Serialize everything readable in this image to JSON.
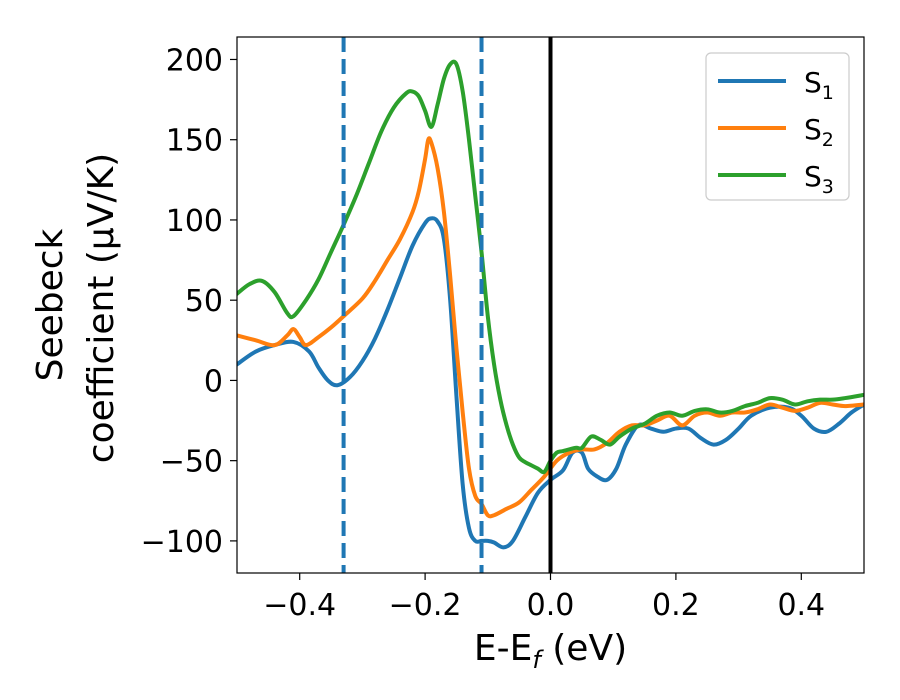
{
  "chart_data": {
    "type": "line",
    "xlabel": {
      "main": "E-E",
      "sub": "f",
      "unit": " (eV)"
    },
    "ylabel": {
      "line1": "Seebeck",
      "line2": "coefficient  (μV/K)"
    },
    "xlim": [
      -0.5,
      0.5
    ],
    "ylim": [
      -120,
      214
    ],
    "xticks": [
      -0.4,
      -0.2,
      0.0,
      0.2,
      0.4
    ],
    "xtick_labels": [
      "−0.4",
      "−0.2",
      "0.0",
      "0.2",
      "0.4"
    ],
    "yticks": [
      -100,
      -50,
      0,
      50,
      100,
      150,
      200
    ],
    "ytick_labels": [
      "−100",
      "−50",
      "0",
      "50",
      "100",
      "150",
      "200"
    ],
    "grid": false,
    "legend_position": "top-right",
    "vlines": [
      {
        "x": -0.33,
        "style": "dashed",
        "color": "#1f77b4"
      },
      {
        "x": -0.11,
        "style": "dashed",
        "color": "#1f77b4"
      },
      {
        "x": 0.0,
        "style": "solid",
        "color": "#000000"
      }
    ],
    "series": [
      {
        "name": "S",
        "name_sub": "1",
        "color": "#1f77b4",
        "points": [
          [
            -0.5,
            10
          ],
          [
            -0.47,
            18
          ],
          [
            -0.44,
            22
          ],
          [
            -0.41,
            24
          ],
          [
            -0.385,
            18
          ],
          [
            -0.37,
            8
          ],
          [
            -0.355,
            0
          ],
          [
            -0.34,
            -3
          ],
          [
            -0.32,
            2
          ],
          [
            -0.3,
            12
          ],
          [
            -0.28,
            26
          ],
          [
            -0.26,
            44
          ],
          [
            -0.24,
            64
          ],
          [
            -0.22,
            84
          ],
          [
            -0.2,
            98
          ],
          [
            -0.19,
            101
          ],
          [
            -0.18,
            99
          ],
          [
            -0.17,
            88
          ],
          [
            -0.16,
            50
          ],
          [
            -0.15,
            -10
          ],
          [
            -0.14,
            -65
          ],
          [
            -0.13,
            -92
          ],
          [
            -0.12,
            -100
          ],
          [
            -0.11,
            -100
          ],
          [
            -0.1,
            -100
          ],
          [
            -0.09,
            -101
          ],
          [
            -0.075,
            -104
          ],
          [
            -0.06,
            -100
          ],
          [
            -0.04,
            -85
          ],
          [
            -0.02,
            -70
          ],
          [
            0.0,
            -62
          ],
          [
            0.02,
            -56
          ],
          [
            0.035,
            -45
          ],
          [
            0.05,
            -45
          ],
          [
            0.06,
            -55
          ],
          [
            0.075,
            -60
          ],
          [
            0.09,
            -62
          ],
          [
            0.105,
            -55
          ],
          [
            0.12,
            -40
          ],
          [
            0.14,
            -28
          ],
          [
            0.16,
            -30
          ],
          [
            0.18,
            -32
          ],
          [
            0.2,
            -30
          ],
          [
            0.22,
            -30
          ],
          [
            0.24,
            -36
          ],
          [
            0.26,
            -40
          ],
          [
            0.28,
            -37
          ],
          [
            0.3,
            -30
          ],
          [
            0.32,
            -22
          ],
          [
            0.35,
            -17
          ],
          [
            0.38,
            -17
          ],
          [
            0.4,
            -22
          ],
          [
            0.42,
            -30
          ],
          [
            0.44,
            -32
          ],
          [
            0.46,
            -27
          ],
          [
            0.48,
            -20
          ],
          [
            0.5,
            -15
          ]
        ]
      },
      {
        "name": "S",
        "name_sub": "2",
        "color": "#ff7f0e",
        "points": [
          [
            -0.5,
            28
          ],
          [
            -0.47,
            25
          ],
          [
            -0.44,
            22
          ],
          [
            -0.42,
            28
          ],
          [
            -0.41,
            32
          ],
          [
            -0.4,
            27
          ],
          [
            -0.39,
            22
          ],
          [
            -0.37,
            27
          ],
          [
            -0.35,
            33
          ],
          [
            -0.33,
            40
          ],
          [
            -0.3,
            51
          ],
          [
            -0.28,
            62
          ],
          [
            -0.26,
            75
          ],
          [
            -0.24,
            88
          ],
          [
            -0.22,
            105
          ],
          [
            -0.21,
            118
          ],
          [
            -0.2,
            138
          ],
          [
            -0.195,
            150
          ],
          [
            -0.19,
            148
          ],
          [
            -0.18,
            132
          ],
          [
            -0.17,
            105
          ],
          [
            -0.16,
            65
          ],
          [
            -0.15,
            20
          ],
          [
            -0.14,
            -20
          ],
          [
            -0.13,
            -55
          ],
          [
            -0.12,
            -72
          ],
          [
            -0.11,
            -77
          ],
          [
            -0.1,
            -84
          ],
          [
            -0.09,
            -84
          ],
          [
            -0.07,
            -80
          ],
          [
            -0.05,
            -76
          ],
          [
            -0.03,
            -68
          ],
          [
            -0.01,
            -60
          ],
          [
            0.01,
            -50
          ],
          [
            0.03,
            -45
          ],
          [
            0.05,
            -43
          ],
          [
            0.07,
            -43
          ],
          [
            0.09,
            -39
          ],
          [
            0.11,
            -32
          ],
          [
            0.13,
            -28
          ],
          [
            0.15,
            -28
          ],
          [
            0.17,
            -25
          ],
          [
            0.19,
            -22
          ],
          [
            0.21,
            -28
          ],
          [
            0.23,
            -22
          ],
          [
            0.25,
            -20
          ],
          [
            0.27,
            -22
          ],
          [
            0.29,
            -20
          ],
          [
            0.31,
            -20
          ],
          [
            0.33,
            -18
          ],
          [
            0.35,
            -15
          ],
          [
            0.37,
            -17
          ],
          [
            0.39,
            -19
          ],
          [
            0.41,
            -17
          ],
          [
            0.43,
            -14
          ],
          [
            0.45,
            -15
          ],
          [
            0.47,
            -16
          ],
          [
            0.5,
            -15
          ]
        ]
      },
      {
        "name": "S",
        "name_sub": "3",
        "color": "#2ca02c",
        "points": [
          [
            -0.5,
            54
          ],
          [
            -0.48,
            60
          ],
          [
            -0.46,
            62
          ],
          [
            -0.44,
            55
          ],
          [
            -0.42,
            42
          ],
          [
            -0.41,
            40
          ],
          [
            -0.39,
            50
          ],
          [
            -0.37,
            63
          ],
          [
            -0.35,
            80
          ],
          [
            -0.33,
            97
          ],
          [
            -0.31,
            115
          ],
          [
            -0.29,
            135
          ],
          [
            -0.27,
            155
          ],
          [
            -0.25,
            170
          ],
          [
            -0.23,
            179
          ],
          [
            -0.22,
            180
          ],
          [
            -0.21,
            177
          ],
          [
            -0.2,
            168
          ],
          [
            -0.19,
            158
          ],
          [
            -0.18,
            172
          ],
          [
            -0.17,
            188
          ],
          [
            -0.16,
            197
          ],
          [
            -0.15,
            197
          ],
          [
            -0.14,
            180
          ],
          [
            -0.13,
            150
          ],
          [
            -0.12,
            115
          ],
          [
            -0.11,
            80
          ],
          [
            -0.1,
            40
          ],
          [
            -0.09,
            10
          ],
          [
            -0.08,
            -12
          ],
          [
            -0.07,
            -28
          ],
          [
            -0.06,
            -40
          ],
          [
            -0.05,
            -48
          ],
          [
            -0.04,
            -51
          ],
          [
            -0.03,
            -53
          ],
          [
            -0.02,
            -55
          ],
          [
            -0.01,
            -57
          ],
          [
            0.0,
            -50
          ],
          [
            0.01,
            -45
          ],
          [
            0.02,
            -44
          ],
          [
            0.04,
            -42
          ],
          [
            0.05,
            -42
          ],
          [
            0.065,
            -35
          ],
          [
            0.08,
            -37
          ],
          [
            0.095,
            -40
          ],
          [
            0.11,
            -35
          ],
          [
            0.13,
            -30
          ],
          [
            0.15,
            -27
          ],
          [
            0.17,
            -22
          ],
          [
            0.19,
            -20
          ],
          [
            0.21,
            -22
          ],
          [
            0.23,
            -19
          ],
          [
            0.25,
            -18
          ],
          [
            0.27,
            -20
          ],
          [
            0.29,
            -19
          ],
          [
            0.31,
            -16
          ],
          [
            0.33,
            -14
          ],
          [
            0.35,
            -11
          ],
          [
            0.37,
            -12
          ],
          [
            0.39,
            -15
          ],
          [
            0.41,
            -13
          ],
          [
            0.43,
            -12
          ],
          [
            0.45,
            -12
          ],
          [
            0.47,
            -11
          ],
          [
            0.5,
            -9
          ]
        ]
      }
    ]
  }
}
